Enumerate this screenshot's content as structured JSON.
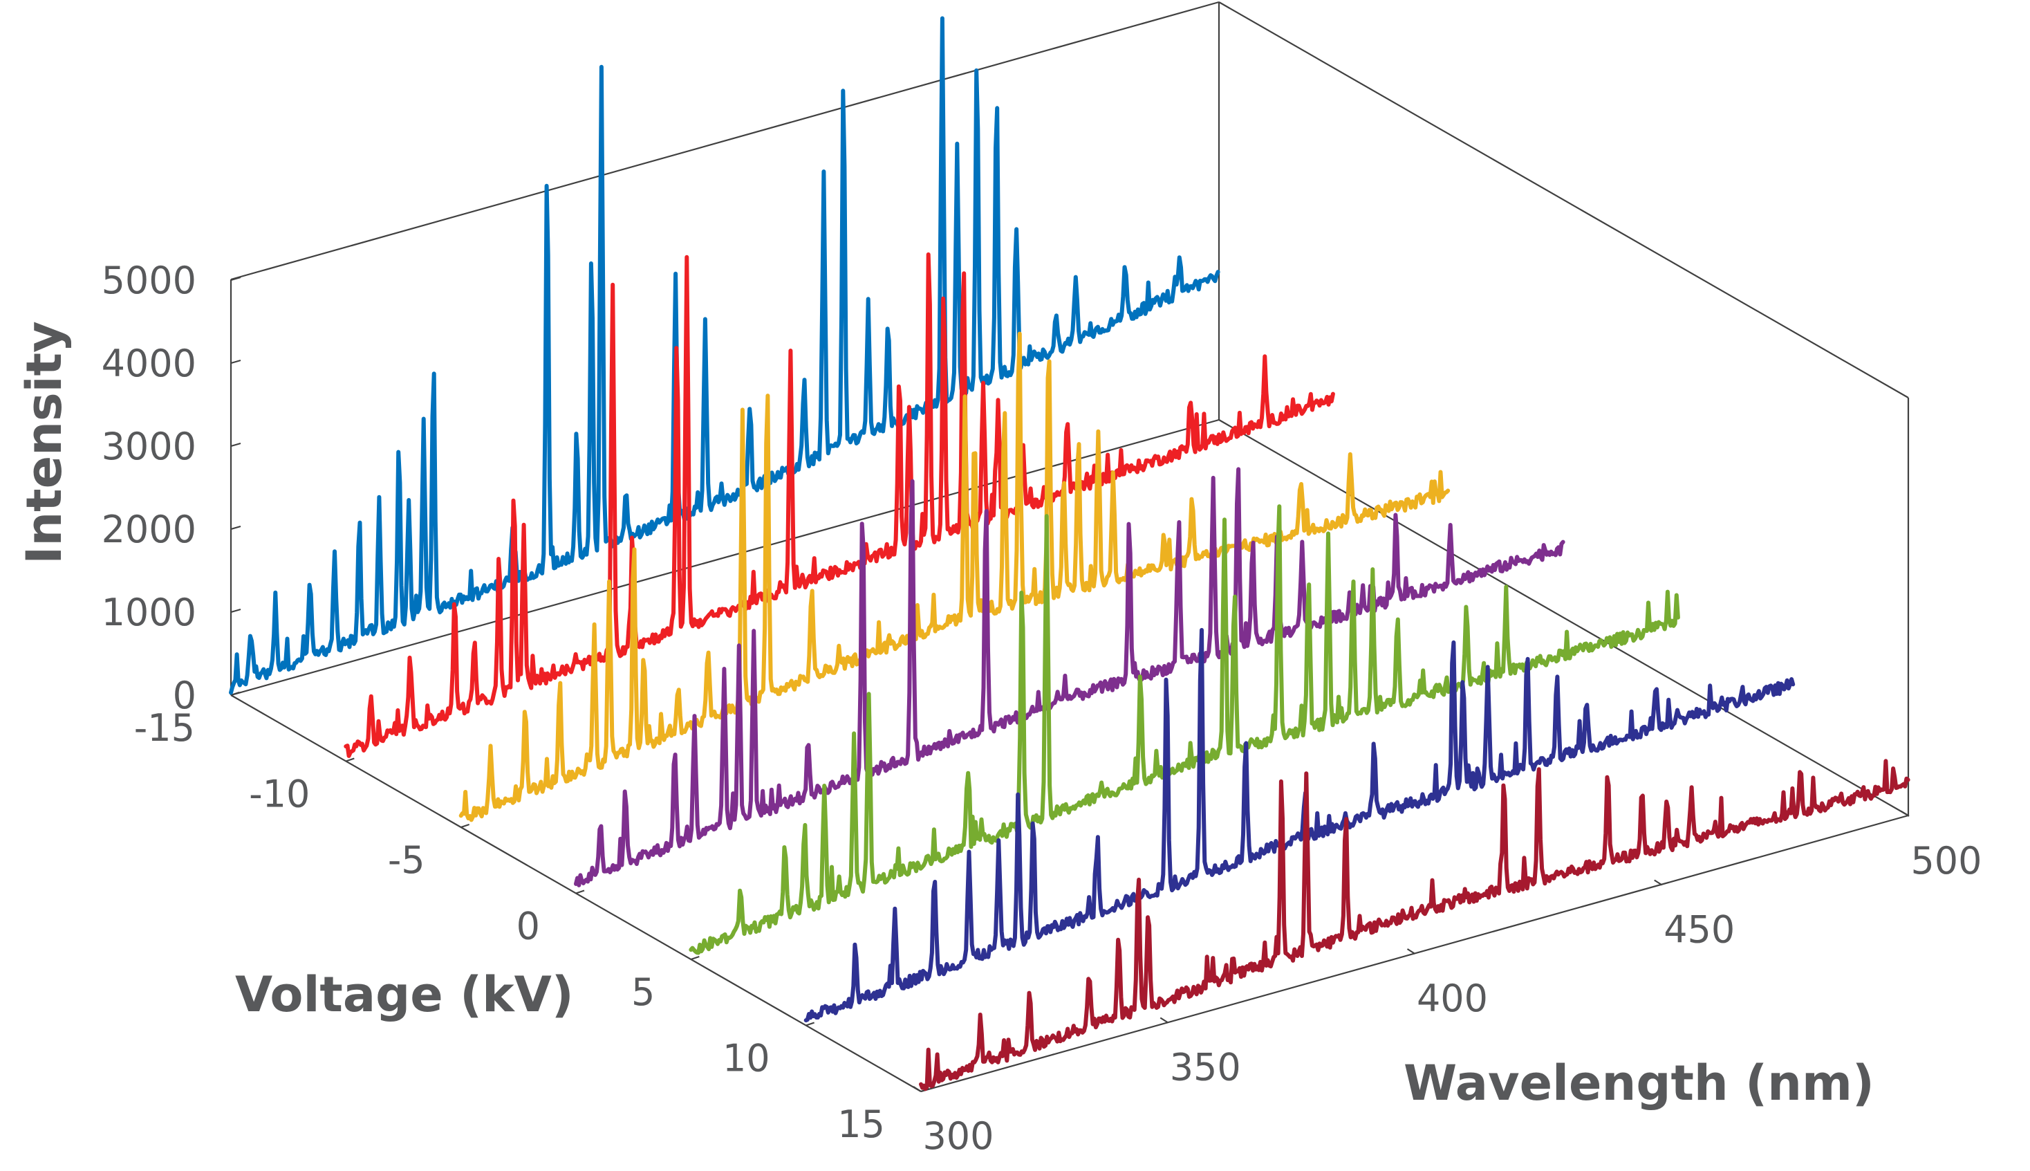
{
  "chart_data": {
    "type": "line",
    "subtype": "3d-waterfall",
    "title": "",
    "xlabel": "Wavelength (nm)",
    "ylabel": "Voltage (kV)",
    "zlabel": "Intensity",
    "xlim": [
      300,
      500
    ],
    "ylim": [
      -15,
      15
    ],
    "zlim": [
      0,
      5000
    ],
    "x_ticks": [
      "300",
      "350",
      "400",
      "450",
      "500"
    ],
    "y_ticks": [
      "-15",
      "-10",
      "-5",
      "0",
      "5",
      "10",
      "15"
    ],
    "z_ticks": [
      "0",
      "1000",
      "2000",
      "3000",
      "4000",
      "5000"
    ],
    "grid": false,
    "legend": "none",
    "series": [
      {
        "voltage": -15,
        "color": "#0072bd",
        "baseline": [
          [
            300,
            100
          ],
          [
            400,
            700
          ],
          [
            500,
            1750
          ]
        ],
        "peaks": [
          [
            304,
            600
          ],
          [
            309,
            900
          ],
          [
            316,
            1000
          ],
          [
            321,
            1150
          ],
          [
            326,
            1450
          ],
          [
            330,
            1550
          ],
          [
            334,
            2200
          ],
          [
            336,
            1450
          ],
          [
            339,
            2350
          ],
          [
            341,
            3050
          ],
          [
            357,
            600
          ],
          [
            364,
            4900
          ],
          [
            370,
            1500
          ],
          [
            373,
            3650
          ],
          [
            375,
            5800
          ],
          [
            380,
            550
          ],
          [
            390,
            3000
          ],
          [
            396,
            2200
          ],
          [
            405,
            1000
          ],
          [
            416,
            1000
          ],
          [
            420,
            3450
          ],
          [
            424,
            4400
          ],
          [
            429,
            1600
          ],
          [
            433,
            1300
          ],
          [
            444,
            4600
          ],
          [
            447,
            3000
          ],
          [
            451,
            4050
          ],
          [
            455,
            3500
          ],
          [
            459,
            1700
          ],
          [
            467,
            400
          ],
          [
            471,
            800
          ],
          [
            481,
            700
          ],
          [
            492,
            450
          ]
        ]
      },
      {
        "voltage": -10,
        "color": "#ee2024",
        "baseline": [
          [
            300,
            120
          ],
          [
            400,
            650
          ],
          [
            500,
            1050
          ]
        ],
        "peaks": [
          [
            305,
            600
          ],
          [
            313,
            850
          ],
          [
            322,
            1400
          ],
          [
            326,
            750
          ],
          [
            331,
            1700
          ],
          [
            334,
            2500
          ],
          [
            336,
            2000
          ],
          [
            354,
            4400
          ],
          [
            358,
            1400
          ],
          [
            367,
            3600
          ],
          [
            369,
            4500
          ],
          [
            390,
            2800
          ],
          [
            412,
            2150
          ],
          [
            414,
            1700
          ],
          [
            418,
            3650
          ],
          [
            421,
            3000
          ],
          [
            425,
            3250
          ],
          [
            429,
            1650
          ],
          [
            432,
            1400
          ],
          [
            437,
            800
          ],
          [
            446,
            900
          ],
          [
            471,
            600
          ],
          [
            486,
            550
          ]
        ]
      },
      {
        "voltage": -5,
        "color": "#edb120",
        "baseline": [
          [
            300,
            100
          ],
          [
            400,
            850
          ],
          [
            500,
            700
          ]
        ],
        "peaks": [
          [
            306,
            700
          ],
          [
            313,
            1100
          ],
          [
            320,
            1200
          ],
          [
            327,
            1750
          ],
          [
            330,
            2100
          ],
          [
            335,
            2600
          ],
          [
            337,
            1100
          ],
          [
            344,
            600
          ],
          [
            350,
            900
          ],
          [
            357,
            3600
          ],
          [
            362,
            3850
          ],
          [
            371,
            1150
          ],
          [
            402,
            2650
          ],
          [
            404,
            2100
          ],
          [
            410,
            2500
          ],
          [
            413,
            3400
          ],
          [
            419,
            2950
          ],
          [
            422,
            1400
          ],
          [
            425,
            1900
          ],
          [
            429,
            1850
          ],
          [
            432,
            1300
          ],
          [
            448,
            700
          ],
          [
            470,
            650
          ],
          [
            480,
            800
          ]
        ]
      },
      {
        "voltage": 0,
        "color": "#7e2f8e",
        "baseline": [
          [
            300,
            150
          ],
          [
            400,
            700
          ],
          [
            500,
            850
          ]
        ],
        "peaks": [
          [
            305,
            650
          ],
          [
            310,
            900
          ],
          [
            320,
            1200
          ],
          [
            324,
            1400
          ],
          [
            330,
            1900
          ],
          [
            333,
            2100
          ],
          [
            336,
            2200
          ],
          [
            347,
            650
          ],
          [
            358,
            3250
          ],
          [
            368,
            3550
          ],
          [
            383,
            2750
          ],
          [
            412,
            1950
          ],
          [
            422,
            1800
          ],
          [
            429,
            2150
          ],
          [
            434,
            2250
          ],
          [
            437,
            1300
          ],
          [
            442,
            1250
          ],
          [
            447,
            1050
          ],
          [
            466,
            900
          ],
          [
            477,
            650
          ]
        ]
      },
      {
        "voltage": 5,
        "color": "#77ac30",
        "baseline": [
          [
            300,
            100
          ],
          [
            400,
            700
          ],
          [
            500,
            750
          ]
        ],
        "peaks": [
          [
            310,
            550
          ],
          [
            319,
            850
          ],
          [
            323,
            1000
          ],
          [
            327,
            1350
          ],
          [
            333,
            1900
          ],
          [
            336,
            2350
          ],
          [
            356,
            950
          ],
          [
            367,
            3050
          ],
          [
            372,
            3550
          ],
          [
            391,
            1300
          ],
          [
            408,
            2850
          ],
          [
            410,
            1950
          ],
          [
            419,
            2950
          ],
          [
            425,
            1900
          ],
          [
            429,
            2300
          ],
          [
            434,
            1650
          ],
          [
            438,
            1400
          ],
          [
            443,
            1100
          ],
          [
            457,
            950
          ],
          [
            465,
            700
          ]
        ]
      },
      {
        "voltage": 10,
        "color": "#2e3192",
        "baseline": [
          [
            300,
            80
          ],
          [
            400,
            600
          ],
          [
            500,
            800
          ]
        ],
        "peaks": [
          [
            310,
            700
          ],
          [
            318,
            900
          ],
          [
            326,
            1200
          ],
          [
            333,
            1300
          ],
          [
            339,
            1300
          ],
          [
            343,
            1650
          ],
          [
            346,
            1450
          ],
          [
            359,
            900
          ],
          [
            373,
            2700
          ],
          [
            380,
            3100
          ],
          [
            389,
            1500
          ],
          [
            401,
            500
          ],
          [
            415,
            900
          ],
          [
            431,
            1950
          ],
          [
            433,
            1400
          ],
          [
            438,
            1350
          ],
          [
            446,
            1350
          ],
          [
            452,
            1000
          ],
          [
            458,
            550
          ],
          [
            472,
            500
          ]
        ]
      },
      {
        "voltage": 15,
        "color": "#a6192e",
        "baseline": [
          [
            300,
            80
          ],
          [
            400,
            500
          ],
          [
            500,
            400
          ]
        ],
        "peaks": [
          [
            312,
            550
          ],
          [
            322,
            600
          ],
          [
            334,
            650
          ],
          [
            340,
            1050
          ],
          [
            344,
            1700
          ],
          [
            346,
            1200
          ],
          [
            373,
            2200
          ],
          [
            378,
            2100
          ],
          [
            386,
            1450
          ],
          [
            418,
            1350
          ],
          [
            425,
            1400
          ],
          [
            439,
            1100
          ],
          [
            446,
            800
          ],
          [
            451,
            650
          ],
          [
            456,
            600
          ],
          [
            478,
            500
          ]
        ]
      }
    ]
  }
}
